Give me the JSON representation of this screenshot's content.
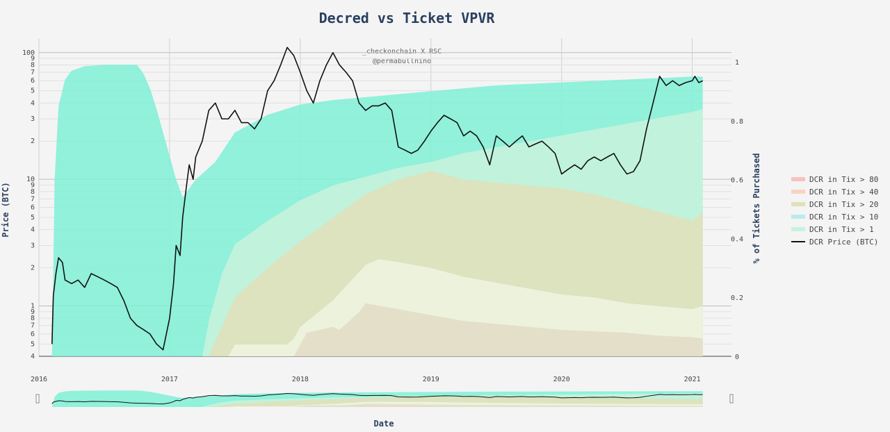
{
  "chart_data": {
    "type": "area",
    "title": "Decred vs Ticket VPVR",
    "watermark_line1": "_checkonchain X RSC",
    "watermark_line2": "@permabullnino",
    "xlabel": "Date",
    "ylabel": "Price (BTC)",
    "y2label": "% of Tickets Purchased",
    "x_ticks": [
      "2016",
      "2017",
      "2018",
      "2019",
      "2020",
      "2021"
    ],
    "y_major_ticks": [
      "100",
      "10",
      "1"
    ],
    "y_minor_ticks": [
      "9",
      "8",
      "7",
      "6",
      "5",
      "4",
      "3",
      "2",
      "9",
      "8",
      "7",
      "6",
      "5",
      "4",
      "3",
      "2",
      "9",
      "8",
      "7",
      "6",
      "5",
      "4"
    ],
    "y2_ticks": [
      "0",
      "0.2",
      "0.4",
      "0.6",
      "0.8",
      "1"
    ],
    "y_scale": "log",
    "legend_position": "right",
    "legend": [
      {
        "name": "DCR in Tix > 80",
        "color": "#f7c2c2"
      },
      {
        "name": "DCR in Tix > 40",
        "color": "#f5d5c2"
      },
      {
        "name": "DCR in Tix > 20",
        "color": "#e2e0b8"
      },
      {
        "name": "DCR in Tix > 10",
        "color": "#b9ece8"
      },
      {
        "name": "DCR in Tix > 1",
        "color": "#c6f3dc"
      },
      {
        "name": "DCR Price (BTC)",
        "color": "#111111"
      }
    ],
    "series": [
      {
        "name": "DCR in Tix > 1",
        "color": "#7ff0d6",
        "x": [
          2016.1,
          2016.12,
          2016.15,
          2016.2,
          2016.25,
          2016.35,
          2016.5,
          2016.65,
          2016.75,
          2016.8,
          2016.85,
          2016.9,
          2016.95,
          2017.0,
          2017.05,
          2017.1,
          2017.2,
          2017.35,
          2017.5,
          2017.75,
          2018.0,
          2018.25,
          2018.5,
          2018.75,
          2019.0,
          2019.25,
          2019.5,
          2019.75,
          2020.0,
          2020.25,
          2020.5,
          2020.75,
          2021.0,
          2021.08
        ],
        "values": [
          0.0,
          0.6,
          0.85,
          0.94,
          0.97,
          0.985,
          0.99,
          0.99,
          0.99,
          0.96,
          0.91,
          0.84,
          0.76,
          0.68,
          0.6,
          0.54,
          0.6,
          0.66,
          0.76,
          0.82,
          0.855,
          0.87,
          0.88,
          0.89,
          0.9,
          0.91,
          0.92,
          0.925,
          0.93,
          0.935,
          0.94,
          0.945,
          0.95,
          0.95
        ]
      },
      {
        "name": "DCR in Tix > 10",
        "color": "#c9f2dc",
        "x": [
          2017.25,
          2017.3,
          2017.4,
          2017.5,
          2017.75,
          2018.0,
          2018.25,
          2018.5,
          2018.75,
          2019.0,
          2019.25,
          2019.5,
          2019.75,
          2020.0,
          2020.25,
          2020.5,
          2020.75,
          2021.0,
          2021.08
        ],
        "values": [
          0.0,
          0.12,
          0.28,
          0.38,
          0.46,
          0.53,
          0.58,
          0.61,
          0.64,
          0.66,
          0.69,
          0.71,
          0.73,
          0.75,
          0.77,
          0.79,
          0.81,
          0.83,
          0.84
        ]
      },
      {
        "name": "DCR in Tix > 20",
        "color": "#e2dfba",
        "x": [
          2017.3,
          2017.4,
          2017.5,
          2017.75,
          2018.0,
          2018.25,
          2018.5,
          2018.75,
          2019.0,
          2019.25,
          2019.5,
          2019.75,
          2020.0,
          2020.25,
          2020.5,
          2020.75,
          2021.0,
          2021.08
        ],
        "values": [
          0.0,
          0.1,
          0.2,
          0.3,
          0.39,
          0.47,
          0.55,
          0.6,
          0.63,
          0.6,
          0.59,
          0.58,
          0.57,
          0.55,
          0.52,
          0.49,
          0.46,
          0.49
        ]
      },
      {
        "name": "DCR in Tix > 40",
        "color": "#f0f4e2",
        "x": [
          2017.45,
          2017.5,
          2017.9,
          2017.95,
          2018.0,
          2018.25,
          2018.5,
          2018.6,
          2018.75,
          2019.0,
          2019.25,
          2019.5,
          2019.75,
          2020.0,
          2020.25,
          2020.5,
          2020.75,
          2021.0,
          2021.08
        ],
        "values": [
          0.0,
          0.04,
          0.04,
          0.06,
          0.1,
          0.19,
          0.31,
          0.33,
          0.32,
          0.3,
          0.27,
          0.25,
          0.23,
          0.21,
          0.2,
          0.18,
          0.17,
          0.16,
          0.17
        ]
      },
      {
        "name": "DCR in Tix > 80",
        "color": "#e2dcc6",
        "x": [
          2017.95,
          2018.05,
          2018.25,
          2018.3,
          2018.45,
          2018.5,
          2018.75,
          2019.0,
          2019.25,
          2019.5,
          2019.75,
          2020.0,
          2020.25,
          2020.5,
          2020.75,
          2021.0,
          2021.08
        ],
        "values": [
          0.0,
          0.08,
          0.1,
          0.09,
          0.15,
          0.18,
          0.16,
          0.14,
          0.12,
          0.11,
          0.1,
          0.09,
          0.085,
          0.08,
          0.07,
          0.065,
          0.06
        ]
      },
      {
        "name": "DCR Price (BTC)",
        "color": "#111111",
        "x": [
          2016.1,
          2016.11,
          2016.13,
          2016.15,
          2016.18,
          2016.2,
          2016.25,
          2016.3,
          2016.35,
          2016.4,
          2016.45,
          2016.5,
          2016.55,
          2016.6,
          2016.65,
          2016.7,
          2016.75,
          2016.8,
          2016.85,
          2016.9,
          2016.95,
          2017.0,
          2017.03,
          2017.05,
          2017.08,
          2017.1,
          2017.13,
          2017.15,
          2017.18,
          2017.2,
          2017.25,
          2017.3,
          2017.35,
          2017.4,
          2017.45,
          2017.5,
          2017.55,
          2017.6,
          2017.65,
          2017.7,
          2017.75,
          2017.8,
          2017.85,
          2017.9,
          2017.95,
          2018.0,
          2018.05,
          2018.1,
          2018.15,
          2018.2,
          2018.25,
          2018.3,
          2018.35,
          2018.4,
          2018.45,
          2018.5,
          2018.55,
          2018.6,
          2018.65,
          2018.7,
          2018.75,
          2018.8,
          2018.85,
          2018.9,
          2018.95,
          2019.0,
          2019.05,
          2019.1,
          2019.15,
          2019.2,
          2019.25,
          2019.3,
          2019.35,
          2019.4,
          2019.45,
          2019.5,
          2019.55,
          2019.6,
          2019.65,
          2019.7,
          2019.75,
          2019.8,
          2019.85,
          2019.9,
          2019.95,
          2020.0,
          2020.05,
          2020.1,
          2020.15,
          2020.2,
          2020.25,
          2020.3,
          2020.35,
          2020.4,
          2020.45,
          2020.5,
          2020.55,
          2020.6,
          2020.65,
          2020.7,
          2020.75,
          2020.8,
          2020.85,
          2020.9,
          2020.95,
          2021.0,
          2021.02,
          2021.05,
          2021.08
        ],
        "values": [
          0.5,
          1.2,
          1.8,
          2.4,
          2.2,
          1.6,
          1.5,
          1.6,
          1.4,
          1.8,
          1.7,
          1.6,
          1.5,
          1.4,
          1.1,
          0.8,
          0.7,
          0.65,
          0.6,
          0.5,
          0.45,
          0.8,
          1.5,
          3.0,
          2.5,
          5.0,
          9.0,
          13.0,
          10.0,
          15.0,
          20.0,
          35.0,
          40.0,
          30.0,
          30.0,
          35.0,
          28.0,
          28.0,
          25.0,
          30.0,
          50.0,
          60.0,
          80.0,
          110.0,
          95.0,
          70.0,
          50.0,
          40.0,
          60.0,
          80.0,
          100.0,
          80.0,
          70.0,
          60.0,
          40.0,
          35.0,
          38.0,
          38.0,
          40.0,
          35.0,
          18.0,
          17.0,
          16.0,
          17.0,
          20.0,
          24.0,
          28.0,
          32.0,
          30.0,
          28.0,
          22.0,
          24.0,
          22.0,
          18.0,
          13.0,
          22.0,
          20.0,
          18.0,
          20.0,
          22.0,
          18.0,
          19.0,
          20.0,
          18.0,
          16.0,
          11.0,
          12.0,
          13.0,
          12.0,
          14.0,
          15.0,
          14.0,
          15.0,
          16.0,
          13.0,
          11.0,
          11.5,
          14.0,
          25.0,
          40.0,
          65.0,
          55.0,
          60.0,
          55.0,
          58.0,
          60.0,
          65.0,
          58.0,
          60.0
        ]
      }
    ]
  }
}
